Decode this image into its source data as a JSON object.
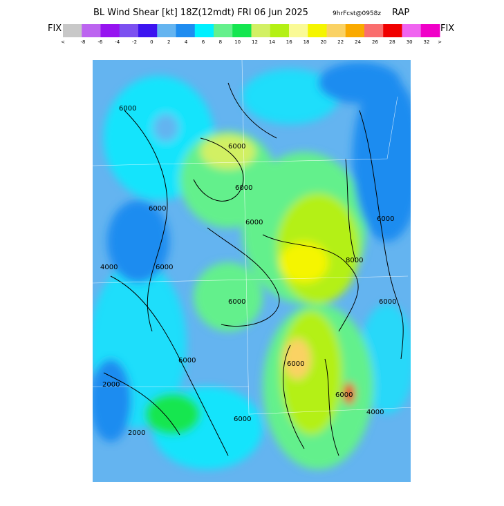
{
  "header": {
    "title": "BL Wind Shear [kt] 18Z(12mdt) FRI 06 Jun 2025",
    "forecast": "9hrFcst@0958z",
    "model": "RAP"
  },
  "colorbar": {
    "left_label": "FIX",
    "right_label": "FIX",
    "colors": [
      "#c8c8c8",
      "#bc64f0",
      "#9614f0",
      "#7c50f0",
      "#3c14f0",
      "#64b4f0",
      "#1e8cf0",
      "#00f0ff",
      "#64f08c",
      "#14e650",
      "#d2f064",
      "#b4f014",
      "#fafa96",
      "#f5f500",
      "#fad264",
      "#faaa00",
      "#fa6e6e",
      "#f00000",
      "#f064f0",
      "#f000c8"
    ],
    "labels": [
      "<",
      "-8",
      "-6",
      "-4",
      "-2",
      "0",
      "2",
      "4",
      "6",
      "8",
      "10",
      "12",
      "14",
      "16",
      "18",
      "20",
      "22",
      "24",
      "26",
      "28",
      "30",
      "32",
      ">"
    ]
  },
  "map": {
    "contour_labels": [
      "6000",
      "6000",
      "6000",
      "6000",
      "4000",
      "6000",
      "6000",
      "6000",
      "8000",
      "6000",
      "6000",
      "2000",
      "2000",
      "4000",
      "6000",
      "6000",
      "6000",
      "6000"
    ]
  }
}
